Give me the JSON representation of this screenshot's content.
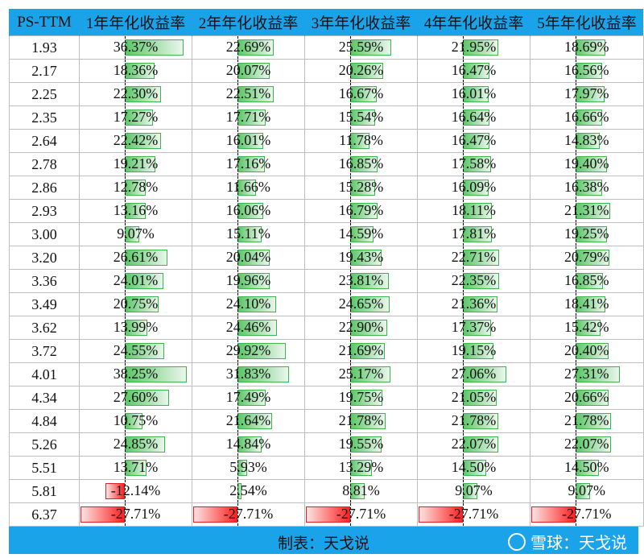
{
  "chart_data": {
    "type": "table",
    "columns": [
      "PS-TTM",
      "1年年化收益率",
      "2年年化收益率",
      "3年年化收益率",
      "4年年化收益率",
      "5年年化收益率"
    ],
    "rows": [
      {
        "ps": "1.93",
        "values": [
          36.37,
          22.69,
          25.59,
          21.95,
          18.69
        ],
        "labels": [
          "36.37%",
          "22.69%",
          "25.59%",
          "21.95%",
          "18.69%"
        ]
      },
      {
        "ps": "2.17",
        "values": [
          18.36,
          20.07,
          20.26,
          16.47,
          16.56
        ],
        "labels": [
          "18.36%",
          "20.07%",
          "20.26%",
          "16.47%",
          "16.56%"
        ]
      },
      {
        "ps": "2.25",
        "values": [
          22.3,
          22.51,
          16.67,
          16.01,
          17.97
        ],
        "labels": [
          "22.30%",
          "22.51%",
          "16.67%",
          "16.01%",
          "17.97%"
        ]
      },
      {
        "ps": "2.35",
        "values": [
          17.27,
          17.71,
          15.54,
          16.64,
          16.66
        ],
        "labels": [
          "17.27%",
          "17.71%",
          "15.54%",
          "16.64%",
          "16.66%"
        ]
      },
      {
        "ps": "2.64",
        "values": [
          22.42,
          16.01,
          11.78,
          16.47,
          14.83
        ],
        "labels": [
          "22.42%",
          "16.01%",
          "11.78%",
          "16.47%",
          "14.83%"
        ]
      },
      {
        "ps": "2.78",
        "values": [
          19.21,
          17.16,
          16.85,
          17.58,
          19.4
        ],
        "labels": [
          "19.21%",
          "17.16%",
          "16.85%",
          "17.58%",
          "19.40%"
        ]
      },
      {
        "ps": "2.86",
        "values": [
          12.78,
          11.66,
          15.28,
          16.09,
          16.38
        ],
        "labels": [
          "12.78%",
          "11.66%",
          "15.28%",
          "16.09%",
          "16.38%"
        ]
      },
      {
        "ps": "2.93",
        "values": [
          13.16,
          16.06,
          16.79,
          18.11,
          21.31
        ],
        "labels": [
          "13.16%",
          "16.06%",
          "16.79%",
          "18.11%",
          "21.31%"
        ]
      },
      {
        "ps": "3.00",
        "values": [
          9.07,
          15.11,
          14.59,
          17.81,
          19.25
        ],
        "labels": [
          "9.07%",
          "15.11%",
          "14.59%",
          "17.81%",
          "19.25%"
        ]
      },
      {
        "ps": "3.20",
        "values": [
          26.61,
          20.04,
          19.43,
          22.71,
          20.79
        ],
        "labels": [
          "26.61%",
          "20.04%",
          "19.43%",
          "22.71%",
          "20.79%"
        ]
      },
      {
        "ps": "3.36",
        "values": [
          24.01,
          19.96,
          23.81,
          22.35,
          16.85
        ],
        "labels": [
          "24.01%",
          "19.96%",
          "23.81%",
          "22.35%",
          "16.85%"
        ]
      },
      {
        "ps": "3.49",
        "values": [
          20.75,
          24.1,
          24.65,
          21.36,
          18.41
        ],
        "labels": [
          "20.75%",
          "24.10%",
          "24.65%",
          "21.36%",
          "18.41%"
        ]
      },
      {
        "ps": "3.62",
        "values": [
          13.99,
          24.46,
          22.9,
          17.37,
          15.42
        ],
        "labels": [
          "13.99%",
          "24.46%",
          "22.90%",
          "17.37%",
          "15.42%"
        ]
      },
      {
        "ps": "3.72",
        "values": [
          24.55,
          29.92,
          21.69,
          19.15,
          20.4
        ],
        "labels": [
          "24.55%",
          "29.92%",
          "21.69%",
          "19.15%",
          "20.40%"
        ]
      },
      {
        "ps": "4.01",
        "values": [
          38.25,
          31.83,
          25.17,
          27.06,
          27.31
        ],
        "labels": [
          "38.25%",
          "31.83%",
          "25.17%",
          "27.06%",
          "27.31%"
        ]
      },
      {
        "ps": "4.34",
        "values": [
          27.6,
          17.49,
          19.75,
          21.05,
          20.66
        ],
        "labels": [
          "27.60%",
          "17.49%",
          "19.75%",
          "21.05%",
          "20.66%"
        ]
      },
      {
        "ps": "4.84",
        "values": [
          10.75,
          21.64,
          21.78,
          21.78,
          21.78
        ],
        "labels": [
          "10.75%",
          "21.64%",
          "21.78%",
          "21.78%",
          "21.78%"
        ]
      },
      {
        "ps": "5.26",
        "values": [
          24.85,
          14.84,
          19.55,
          22.07,
          22.07
        ],
        "labels": [
          "24.85%",
          "14.84%",
          "19.55%",
          "22.07%",
          "22.07%"
        ]
      },
      {
        "ps": "5.51",
        "values": [
          13.71,
          5.93,
          13.29,
          14.5,
          14.5
        ],
        "labels": [
          "13.71%",
          "5.93%",
          "13.29%",
          "14.50%",
          "14.50%"
        ]
      },
      {
        "ps": "5.81",
        "values": [
          -12.14,
          2.54,
          8.81,
          9.07,
          9.07
        ],
        "labels": [
          "-12.14%",
          "2.54%",
          "8.81%",
          "9.07%",
          "9.07%"
        ]
      },
      {
        "ps": "6.37",
        "values": [
          -27.71,
          -27.71,
          -27.71,
          -27.71,
          -27.71
        ],
        "labels": [
          "-27.71%",
          "-27.71%",
          "-27.71%",
          "-27.71%",
          "-27.71%"
        ]
      }
    ],
    "bar_colors": {
      "positive": "#5cc668",
      "negative": "#ff2020"
    }
  },
  "footer": {
    "note": "制表：天戈说",
    "watermark": "雪球：天戈说"
  }
}
